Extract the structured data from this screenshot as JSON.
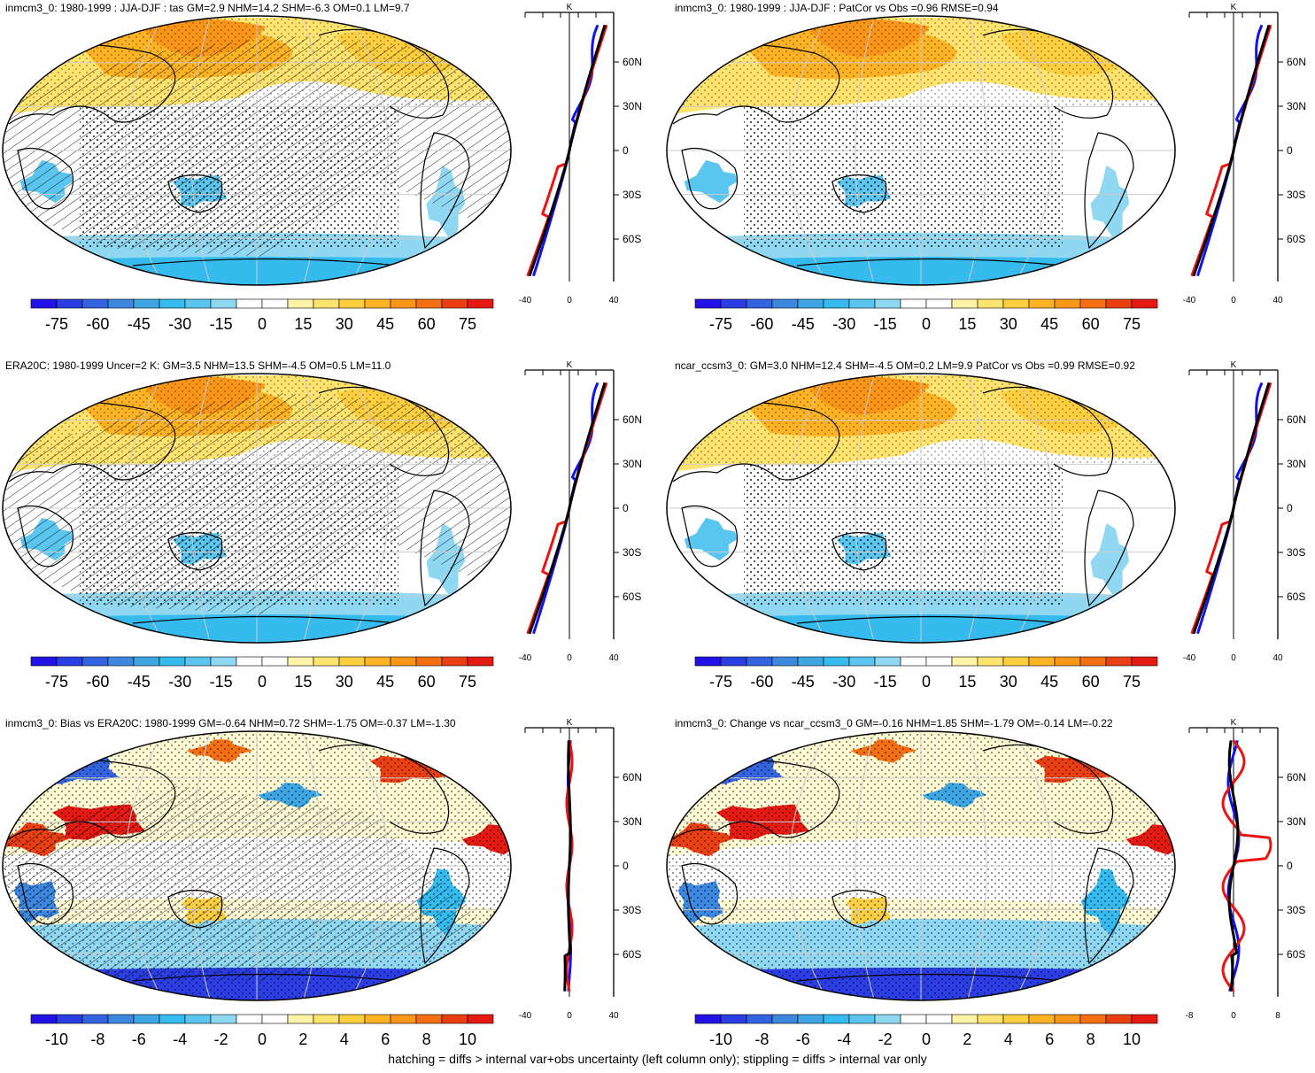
{
  "footer": "hatching = diffs > internal var+obs uncertainty (left column only); stippling = diffs > internal var only",
  "colors": {
    "scale": [
      "#2212e8",
      "#2b3ee3",
      "#3463df",
      "#3c87df",
      "#3fa6e4",
      "#35bbee",
      "#5ac6f0",
      "#90d8f2",
      "#ffffff",
      "#ffffff",
      "#fff3a8",
      "#fee46e",
      "#fdcf40",
      "#fdb323",
      "#f99618",
      "#f46f12",
      "#ea3f13",
      "#e41a13"
    ],
    "obs_line": "#000000",
    "model_line_red": "#ee1111",
    "model_line_blue": "#1111ee",
    "coast": "#000000",
    "grid": "#cccccc"
  },
  "panels": [
    {
      "id": "p1",
      "title": "inmcm3_0: 1980-1999 : JJA-DJF : tas GM=2.9 NHM=14.2 SHM=-6.3 OM=0.1 LM=9.7",
      "map_fields": "large",
      "hatched": true,
      "colorbar_labels": [
        "-75",
        "-60",
        "-45",
        "-30",
        "-15",
        "0",
        "15",
        "30",
        "45",
        "60",
        "75"
      ],
      "profile_unit": "K",
      "profile_xticks": [
        "-40",
        "0",
        "40"
      ],
      "profile_lat_labels": [
        "60N",
        "30N",
        "0",
        "30S",
        "60S"
      ]
    },
    {
      "id": "p2",
      "title": "inmcm3_0: 1980-1999 : JJA-DJF : PatCor vs Obs =0.96 RMSE=0.94",
      "map_fields": "large",
      "hatched": false,
      "colorbar_labels": [
        "-75",
        "-60",
        "-45",
        "-30",
        "-15",
        "0",
        "15",
        "30",
        "45",
        "60",
        "75"
      ],
      "profile_unit": "K",
      "profile_xticks": [
        "-40",
        "0",
        "40"
      ],
      "profile_lat_labels": [
        "60N",
        "30N",
        "0",
        "30S",
        "60S"
      ]
    },
    {
      "id": "p3",
      "title": "ERA20C: 1980-1999 Uncer=2 K: GM=3.5 NHM=13.5 SHM=-4.5 OM=0.5 LM=11.0",
      "map_fields": "large",
      "hatched": true,
      "colorbar_labels": [
        "-75",
        "-60",
        "-45",
        "-30",
        "-15",
        "0",
        "15",
        "30",
        "45",
        "60",
        "75"
      ],
      "profile_unit": "K",
      "profile_xticks": [
        "-40",
        "0",
        "40"
      ],
      "profile_lat_labels": [
        "60N",
        "30N",
        "0",
        "30S",
        "60S"
      ]
    },
    {
      "id": "p4",
      "title": "ncar_ccsm3_0: GM=3.0 NHM=12.4 SHM=-4.5 OM=0.2 LM=9.9 PatCor vs Obs =0.99 RMSE=0.92",
      "map_fields": "large",
      "hatched": false,
      "colorbar_labels": [
        "-75",
        "-60",
        "-45",
        "-30",
        "-15",
        "0",
        "15",
        "30",
        "45",
        "60",
        "75"
      ],
      "profile_unit": "K",
      "profile_xticks": [
        "-40",
        "0",
        "40"
      ],
      "profile_lat_labels": [
        "60N",
        "30N",
        "0",
        "30S",
        "60S"
      ]
    },
    {
      "id": "p5",
      "title": "inmcm3_0: Bias vs ERA20C: 1980-1999 GM=-0.64 NHM=0.72 SHM=-1.75 OM=-0.37 LM=-1.30",
      "map_fields": "diff",
      "hatched": true,
      "colorbar_labels": [
        "-10",
        "-8",
        "-6",
        "-4",
        "-2",
        "0",
        "2",
        "4",
        "6",
        "8",
        "10"
      ],
      "profile_unit": "K",
      "profile_xticks": [
        "-40",
        "0",
        "40"
      ],
      "profile_lat_labels": [
        "60N",
        "30N",
        "0",
        "30S",
        "60S"
      ]
    },
    {
      "id": "p6",
      "title": "inmcm3_0: Change vs ncar_ccsm3_0 GM=-0.16 NHM=1.85 SHM=-1.79 OM=-0.14 LM=-0.22",
      "map_fields": "diff",
      "hatched": false,
      "colorbar_labels": [
        "-10",
        "-8",
        "-6",
        "-4",
        "-2",
        "0",
        "2",
        "4",
        "6",
        "8",
        "10"
      ],
      "profile_unit": "K",
      "profile_xticks": [
        "-8",
        "0",
        "8"
      ],
      "profile_lat_labels": [
        "60N",
        "30N",
        "0",
        "30S",
        "60S"
      ]
    }
  ]
}
